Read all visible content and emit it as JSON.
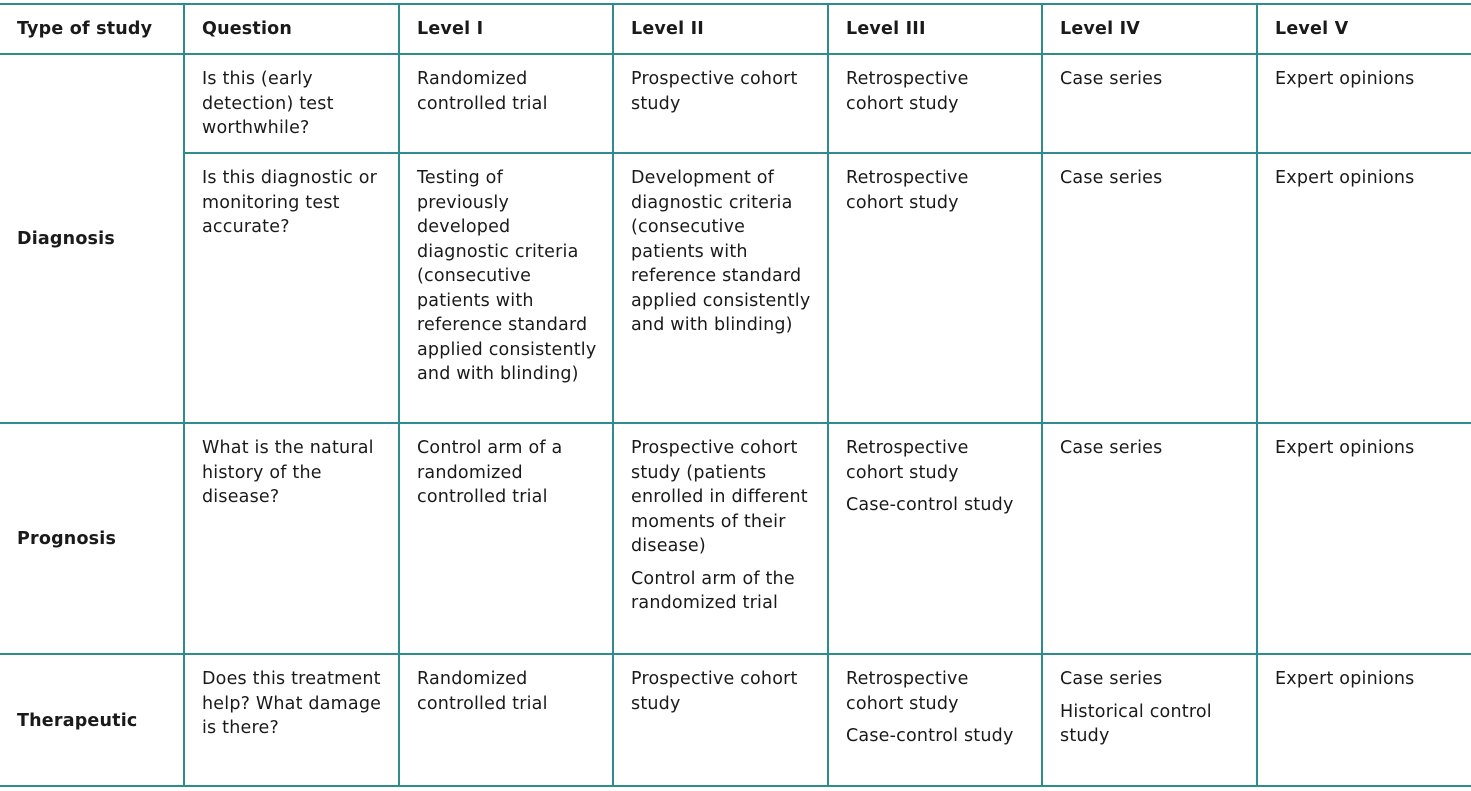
{
  "table": {
    "header": [
      "Type of study",
      "Question",
      "Level I",
      "Level II",
      "Level III",
      "Level IV",
      "Level V"
    ],
    "groups": [
      {
        "type": "Diagnosis",
        "rows": [
          {
            "question": "Is this (early detection) test worthwhile?",
            "levels": [
              [
                "Randomized controlled trial"
              ],
              [
                "Prospective cohort study"
              ],
              [
                "Retrospective cohort study"
              ],
              [
                "Case series"
              ],
              [
                "Expert opinions"
              ]
            ]
          },
          {
            "question": "Is this diagnostic or monitoring test accurate?",
            "levels": [
              [
                "Testing of previously developed diagnostic criteria (consecutive patients with reference standard applied consistently and with blinding)"
              ],
              [
                "Development of diagnostic criteria (consecutive patients with reference standard applied consistently and with blinding)"
              ],
              [
                "Retrospective cohort study"
              ],
              [
                "Case series"
              ],
              [
                "Expert opinions"
              ]
            ]
          }
        ]
      },
      {
        "type": "Prognosis",
        "rows": [
          {
            "question": "What is the natural history of the disease?",
            "levels": [
              [
                "Control arm of a randomized controlled trial"
              ],
              [
                "Prospective cohort study (patients enrolled in different moments of their disease)",
                "Control arm of the randomized trial"
              ],
              [
                "Retrospective cohort study",
                "Case-control study"
              ],
              [
                "Case series"
              ],
              [
                "Expert opinions"
              ]
            ]
          }
        ]
      },
      {
        "type": "Therapeutic",
        "rows": [
          {
            "question": "Does this treatment help? What damage is there?",
            "levels": [
              [
                "Randomized controlled trial"
              ],
              [
                "Prospective cohort study"
              ],
              [
                "Retrospective cohort study",
                "Case-control study"
              ],
              [
                "Case series",
                "Historical control study"
              ],
              [
                "Expert opinions"
              ]
            ]
          }
        ]
      }
    ]
  }
}
